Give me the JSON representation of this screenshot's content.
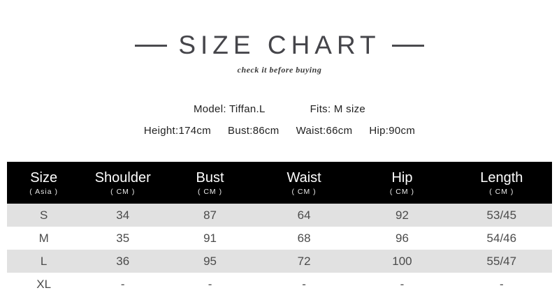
{
  "chart_data": {
    "type": "table",
    "title": "SIZE CHART",
    "subtitle": "check it before buying",
    "model_info": {
      "model": "Model: Tiffan.L",
      "fits": "Fits: M size",
      "measurements": [
        "Height:174cm",
        "Bust:86cm",
        "Waist:66cm",
        "Hip:90cm"
      ]
    },
    "columns": [
      {
        "label": "Size",
        "sub": "( Asia )"
      },
      {
        "label": "Shoulder",
        "sub": "( CM )"
      },
      {
        "label": "Bust",
        "sub": "( CM )"
      },
      {
        "label": "Waist",
        "sub": "( CM )"
      },
      {
        "label": "Hip",
        "sub": "( CM )"
      },
      {
        "label": "Length",
        "sub": "( CM )"
      }
    ],
    "rows": [
      [
        "S",
        "34",
        "87",
        "64",
        "92",
        "53/45"
      ],
      [
        "M",
        "35",
        "91",
        "68",
        "96",
        "54/46"
      ],
      [
        "L",
        "36",
        "95",
        "72",
        "100",
        "55/47"
      ],
      [
        "XL",
        "-",
        "-",
        "-",
        "-",
        "-"
      ]
    ],
    "colors": {
      "header_bg": "#000000",
      "header_text": "#ffffff",
      "alt_row_bg": "#e1e1e1",
      "body_text": "#4b4b4b",
      "title_text": "#45454a"
    },
    "layout": {
      "alternating_rows": true,
      "header_position": "top"
    }
  }
}
